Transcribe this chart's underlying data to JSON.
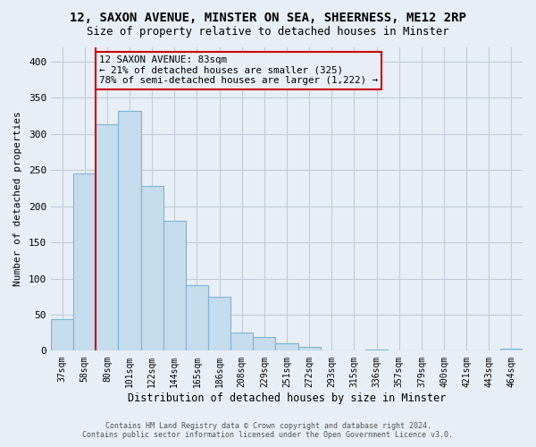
{
  "title": "12, SAXON AVENUE, MINSTER ON SEA, SHEERNESS, ME12 2RP",
  "subtitle": "Size of property relative to detached houses in Minster",
  "xlabel": "Distribution of detached houses by size in Minster",
  "ylabel": "Number of detached properties",
  "bar_labels": [
    "37sqm",
    "58sqm",
    "80sqm",
    "101sqm",
    "122sqm",
    "144sqm",
    "165sqm",
    "186sqm",
    "208sqm",
    "229sqm",
    "251sqm",
    "272sqm",
    "293sqm",
    "315sqm",
    "336sqm",
    "357sqm",
    "379sqm",
    "400sqm",
    "421sqm",
    "443sqm",
    "464sqm"
  ],
  "bar_values": [
    44,
    245,
    313,
    332,
    228,
    180,
    91,
    75,
    25,
    19,
    10,
    5,
    0,
    0,
    2,
    0,
    0,
    0,
    0,
    0,
    3
  ],
  "bar_color": "#c5dced",
  "bar_edge_color": "#7fb3d3",
  "annotation_line1": "12 SAXON AVENUE: 83sqm",
  "annotation_line2": "← 21% of detached houses are smaller (325)",
  "annotation_line3": "78% of semi-detached houses are larger (1,222) →",
  "annotation_box_edge_color": "#cc0000",
  "vline_color": "#cc0000",
  "vline_x_index": 2.0,
  "ylim": [
    0,
    420
  ],
  "yticks": [
    0,
    50,
    100,
    150,
    200,
    250,
    300,
    350,
    400
  ],
  "footer_line1": "Contains HM Land Registry data © Crown copyright and database right 2024.",
  "footer_line2": "Contains public sector information licensed under the Open Government Licence v3.0.",
  "bg_color": "#e8eef5",
  "plot_bg_color": "#e8eef5",
  "grid_color": "#c0ccd8"
}
